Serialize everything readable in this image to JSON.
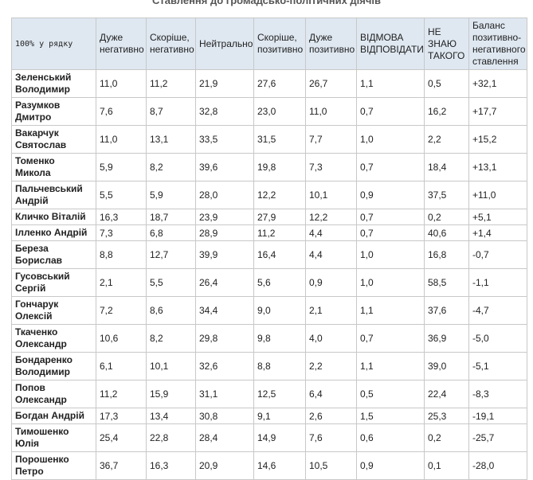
{
  "title": "Ставлення до громадсько-політичних діячів",
  "table": {
    "header": [
      "100% у рядку",
      "Дуже негативно",
      "Скоріше, негативно",
      "Нейтрально",
      "Скоріше, позитивно",
      "Дуже позитивно",
      "ВІДМОВА ВІДПОВІДАТИ",
      "НЕ ЗНАЮ ТАКОГО",
      "Баланс позитивно-негативного ставлення"
    ],
    "rows": [
      [
        [
          "Зеленський",
          "Володимир"
        ],
        "11,0",
        "11,2",
        "21,9",
        "27,6",
        "26,7",
        "1,1",
        "0,5",
        "+32,1"
      ],
      [
        [
          "Разумков",
          "Дмитро"
        ],
        "7,6",
        "8,7",
        "32,8",
        "23,0",
        "11,0",
        "0,7",
        "16,2",
        "+17,7"
      ],
      [
        [
          "Вакарчук",
          "Святослав"
        ],
        "11,0",
        "13,1",
        "33,5",
        "31,5",
        "7,7",
        "1,0",
        "2,2",
        "+15,2"
      ],
      [
        [
          "Томенко Микола"
        ],
        "5,9",
        "8,2",
        "39,6",
        "19,8",
        "7,3",
        "0,7",
        "18,4",
        "+13,1"
      ],
      [
        [
          "Пальчевський",
          "Андрій"
        ],
        "5,5",
        "5,9",
        "28,0",
        "12,2",
        "10,1",
        "0,9",
        "37,5",
        "+11,0"
      ],
      [
        [
          "Кличко Віталій"
        ],
        "16,3",
        "18,7",
        "23,9",
        "27,9",
        "12,2",
        "0,7",
        "0,2",
        "+5,1"
      ],
      [
        [
          "Ілленко Андрій"
        ],
        "7,3",
        "6,8",
        "28,9",
        "11,2",
        "4,4",
        "0,7",
        "40,6",
        "+1,4"
      ],
      [
        [
          "Береза",
          "Борислав"
        ],
        "8,8",
        "12,7",
        "39,9",
        "16,4",
        "4,4",
        "1,0",
        "16,8",
        "-0,7"
      ],
      [
        [
          "Гусовський",
          "Сергій"
        ],
        "2,1",
        "5,5",
        "26,4",
        "5,6",
        "0,9",
        "1,0",
        "58,5",
        "-1,1"
      ],
      [
        [
          "Гончарук",
          "Олексій"
        ],
        "7,2",
        "8,6",
        "34,4",
        "9,0",
        "2,1",
        "1,1",
        "37,6",
        "-4,7"
      ],
      [
        [
          "Ткаченко",
          "Олександр"
        ],
        "10,6",
        "8,2",
        "29,8",
        "9,8",
        "4,0",
        "0,7",
        "36,9",
        "-5,0"
      ],
      [
        [
          "Бондаренко",
          "Володимир"
        ],
        "6,1",
        "10,1",
        "32,6",
        "8,8",
        "2,2",
        "1,1",
        "39,0",
        "-5,1"
      ],
      [
        [
          "Попов",
          "Олександр"
        ],
        "11,2",
        "15,9",
        "31,1",
        "12,5",
        "6,4",
        "0,5",
        "22,4",
        "-8,3"
      ],
      [
        [
          "Богдан Андрій"
        ],
        "17,3",
        "13,4",
        "30,8",
        "9,1",
        "2,6",
        "1,5",
        "25,3",
        "-19,1"
      ],
      [
        [
          "Тимошенко Юлія"
        ],
        "25,4",
        "22,8",
        "28,4",
        "14,9",
        "7,6",
        "0,6",
        "0,2",
        "-25,7"
      ],
      [
        [
          "Порошенко",
          "Петро"
        ],
        "36,7",
        "16,3",
        "20,9",
        "14,6",
        "10,5",
        "0,9",
        "0,1",
        "-28,0"
      ]
    ]
  }
}
